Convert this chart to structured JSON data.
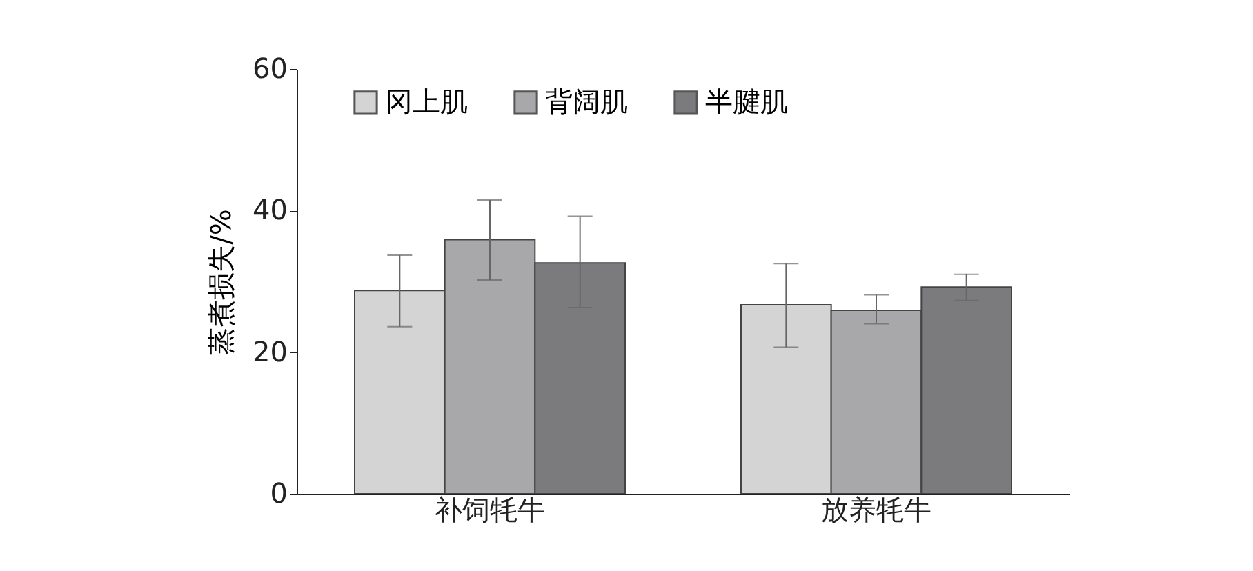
{
  "chart_data": {
    "type": "bar",
    "ylabel": "蒸煮损失/%",
    "categories": [
      "补饲牦牛",
      "放养牦牛"
    ],
    "series": [
      {
        "name": "冈上肌",
        "color": "#d4d4d4",
        "values": [
          28.7,
          26.7
        ],
        "errors": [
          [
            23.6,
            33.7
          ],
          [
            20.7,
            32.5
          ]
        ]
      },
      {
        "name": "背阔肌",
        "color": "#a8a8aa",
        "values": [
          35.9,
          25.9
        ],
        "errors": [
          [
            30.2,
            41.5
          ],
          [
            24.0,
            28.1
          ]
        ]
      },
      {
        "name": "半腱肌",
        "color": "#7b7b7d",
        "values": [
          32.6,
          29.2
        ],
        "errors": [
          [
            26.3,
            39.2
          ],
          [
            27.3,
            31.0
          ]
        ]
      }
    ],
    "ylim": [
      0,
      60
    ],
    "yticks": [
      0,
      20,
      40,
      60
    ],
    "grid": false,
    "legend": "top"
  }
}
